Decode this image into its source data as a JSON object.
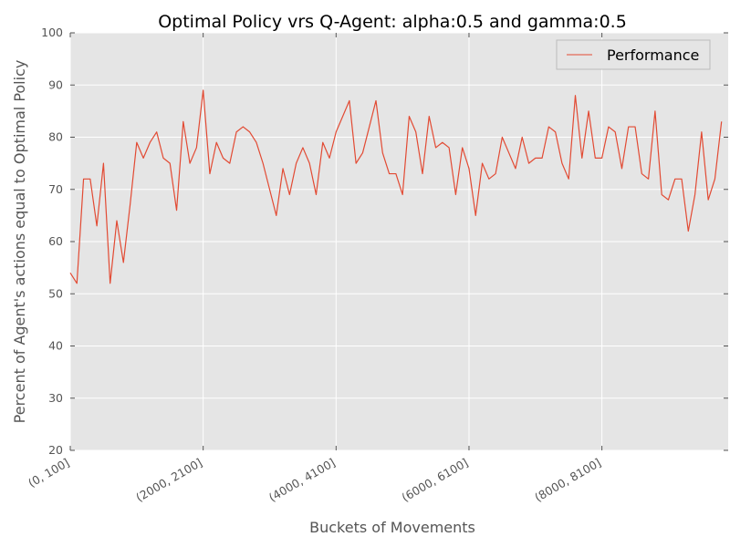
{
  "chart_data": {
    "type": "line",
    "title": "Optimal Policy vrs Q-Agent: alpha:0.5 and gamma:0.5",
    "xlabel": "Buckets of Movements",
    "ylabel": "Percent of Agent's actions equal to Optimal Policy",
    "ylim": [
      20,
      100
    ],
    "yticks": [
      20,
      30,
      40,
      50,
      60,
      70,
      80,
      90,
      100
    ],
    "xlim": [
      0,
      99
    ],
    "xticks": [
      {
        "index": 0,
        "label": "(0, 100]"
      },
      {
        "index": 20,
        "label": "(2000, 2100]"
      },
      {
        "index": 40,
        "label": "(4000, 4100]"
      },
      {
        "index": 60,
        "label": "(6000, 6100]"
      },
      {
        "index": 80,
        "label": "(8000, 8100]"
      }
    ],
    "grid": true,
    "legend_position": "top-right",
    "colors": {
      "plot_background": "#e5e5e5",
      "grid": "#ffffff",
      "line": "#e24a33"
    },
    "series": [
      {
        "name": "Performance",
        "values": [
          54,
          52,
          72,
          72,
          63,
          75,
          52,
          64,
          56,
          67,
          79,
          76,
          79,
          81,
          76,
          75,
          66,
          83,
          75,
          78,
          89,
          73,
          79,
          76,
          75,
          81,
          82,
          81,
          79,
          75,
          70,
          65,
          74,
          69,
          75,
          78,
          75,
          69,
          79,
          76,
          81,
          84,
          87,
          75,
          77,
          82,
          87,
          77,
          73,
          73,
          69,
          84,
          81,
          73,
          84,
          78,
          79,
          78,
          69,
          78,
          74,
          65,
          75,
          72,
          73,
          80,
          77,
          74,
          80,
          75,
          76,
          76,
          82,
          81,
          75,
          72,
          88,
          76,
          85,
          76,
          76,
          82,
          81,
          74,
          82,
          82,
          73,
          72,
          85,
          69,
          68,
          72,
          72,
          62,
          69,
          81,
          68,
          72,
          83
        ]
      }
    ]
  }
}
